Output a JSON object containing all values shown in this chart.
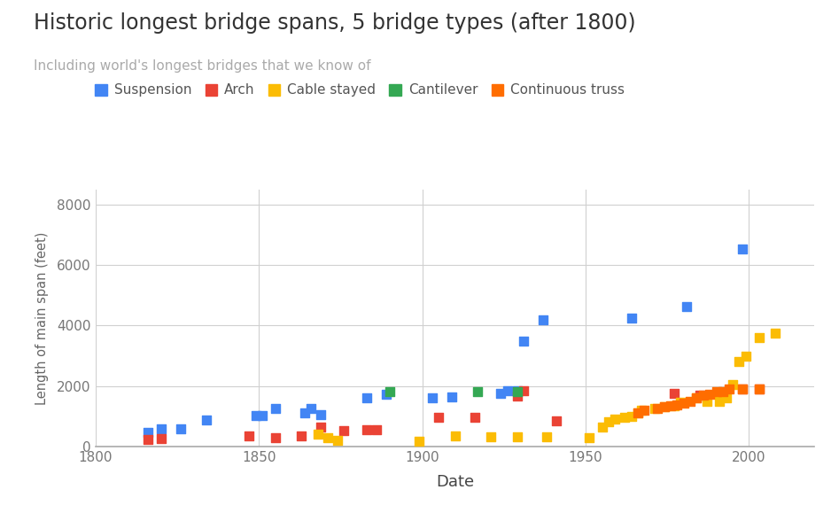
{
  "title": "Historic longest bridge spans, 5 bridge types (after 1800)",
  "subtitle": "Including world's longest bridges that we know of",
  "xlabel": "Date",
  "ylabel": "Length of main span (feet)",
  "xlim": [
    1800,
    2020
  ],
  "ylim": [
    0,
    8500
  ],
  "xticks": [
    1800,
    1850,
    1900,
    1950,
    2000
  ],
  "yticks": [
    0,
    2000,
    4000,
    6000,
    8000
  ],
  "background_color": "#ffffff",
  "grid_color": "#d0d0d0",
  "series": {
    "Suspension": {
      "color": "#4285F4",
      "data": [
        [
          1816,
          449
        ],
        [
          1820,
          580
        ],
        [
          1826,
          580
        ],
        [
          1834,
          870
        ],
        [
          1849,
          1010
        ],
        [
          1851,
          1010
        ],
        [
          1855,
          1260
        ],
        [
          1864,
          1100
        ],
        [
          1866,
          1268
        ],
        [
          1869,
          1057
        ],
        [
          1883,
          1595
        ],
        [
          1889,
          1710
        ],
        [
          1903,
          1600
        ],
        [
          1909,
          1650
        ],
        [
          1924,
          1750
        ],
        [
          1926,
          1850
        ],
        [
          1929,
          1850
        ],
        [
          1931,
          3500
        ],
        [
          1937,
          4200
        ],
        [
          1964,
          4260
        ],
        [
          1981,
          4626
        ],
        [
          1998,
          6529
        ]
      ]
    },
    "Arch": {
      "color": "#EA4335",
      "data": [
        [
          1816,
          240
        ],
        [
          1820,
          260
        ],
        [
          1847,
          330
        ],
        [
          1855,
          280
        ],
        [
          1863,
          330
        ],
        [
          1869,
          630
        ],
        [
          1876,
          520
        ],
        [
          1883,
          550
        ],
        [
          1886,
          550
        ],
        [
          1905,
          950
        ],
        [
          1916,
          950
        ],
        [
          1929,
          1675
        ],
        [
          1931,
          1850
        ],
        [
          1941,
          850
        ],
        [
          1977,
          1750
        ],
        [
          1985,
          1700
        ],
        [
          1998,
          1900
        ],
        [
          2003,
          1900
        ]
      ]
    },
    "Cable stayed": {
      "color": "#FBBC04",
      "data": [
        [
          1868,
          390
        ],
        [
          1871,
          280
        ],
        [
          1874,
          200
        ],
        [
          1899,
          180
        ],
        [
          1910,
          330
        ],
        [
          1921,
          310
        ],
        [
          1929,
          310
        ],
        [
          1938,
          310
        ],
        [
          1951,
          290
        ],
        [
          1955,
          650
        ],
        [
          1957,
          820
        ],
        [
          1959,
          900
        ],
        [
          1962,
          950
        ],
        [
          1964,
          1000
        ],
        [
          1966,
          1100
        ],
        [
          1967,
          1200
        ],
        [
          1971,
          1250
        ],
        [
          1974,
          1300
        ],
        [
          1977,
          1350
        ],
        [
          1979,
          1450
        ],
        [
          1984,
          1600
        ],
        [
          1987,
          1500
        ],
        [
          1991,
          1500
        ],
        [
          1993,
          1600
        ],
        [
          1995,
          2050
        ],
        [
          1997,
          2800
        ],
        [
          1999,
          3000
        ],
        [
          2003,
          3600
        ],
        [
          2008,
          3740
        ]
      ]
    },
    "Cantilever": {
      "color": "#34A853",
      "data": [
        [
          1890,
          1800
        ],
        [
          1917,
          1800
        ],
        [
          1929,
          1800
        ]
      ]
    },
    "Continuous truss": {
      "color": "#FF6D00",
      "data": [
        [
          1966,
          1100
        ],
        [
          1968,
          1200
        ],
        [
          1972,
          1260
        ],
        [
          1974,
          1300
        ],
        [
          1976,
          1350
        ],
        [
          1978,
          1370
        ],
        [
          1980,
          1420
        ],
        [
          1982,
          1500
        ],
        [
          1984,
          1600
        ],
        [
          1986,
          1700
        ],
        [
          1988,
          1710
        ],
        [
          1990,
          1800
        ],
        [
          1992,
          1820
        ],
        [
          1994,
          1900
        ],
        [
          1998,
          1900
        ],
        [
          2003,
          1900
        ]
      ]
    }
  }
}
